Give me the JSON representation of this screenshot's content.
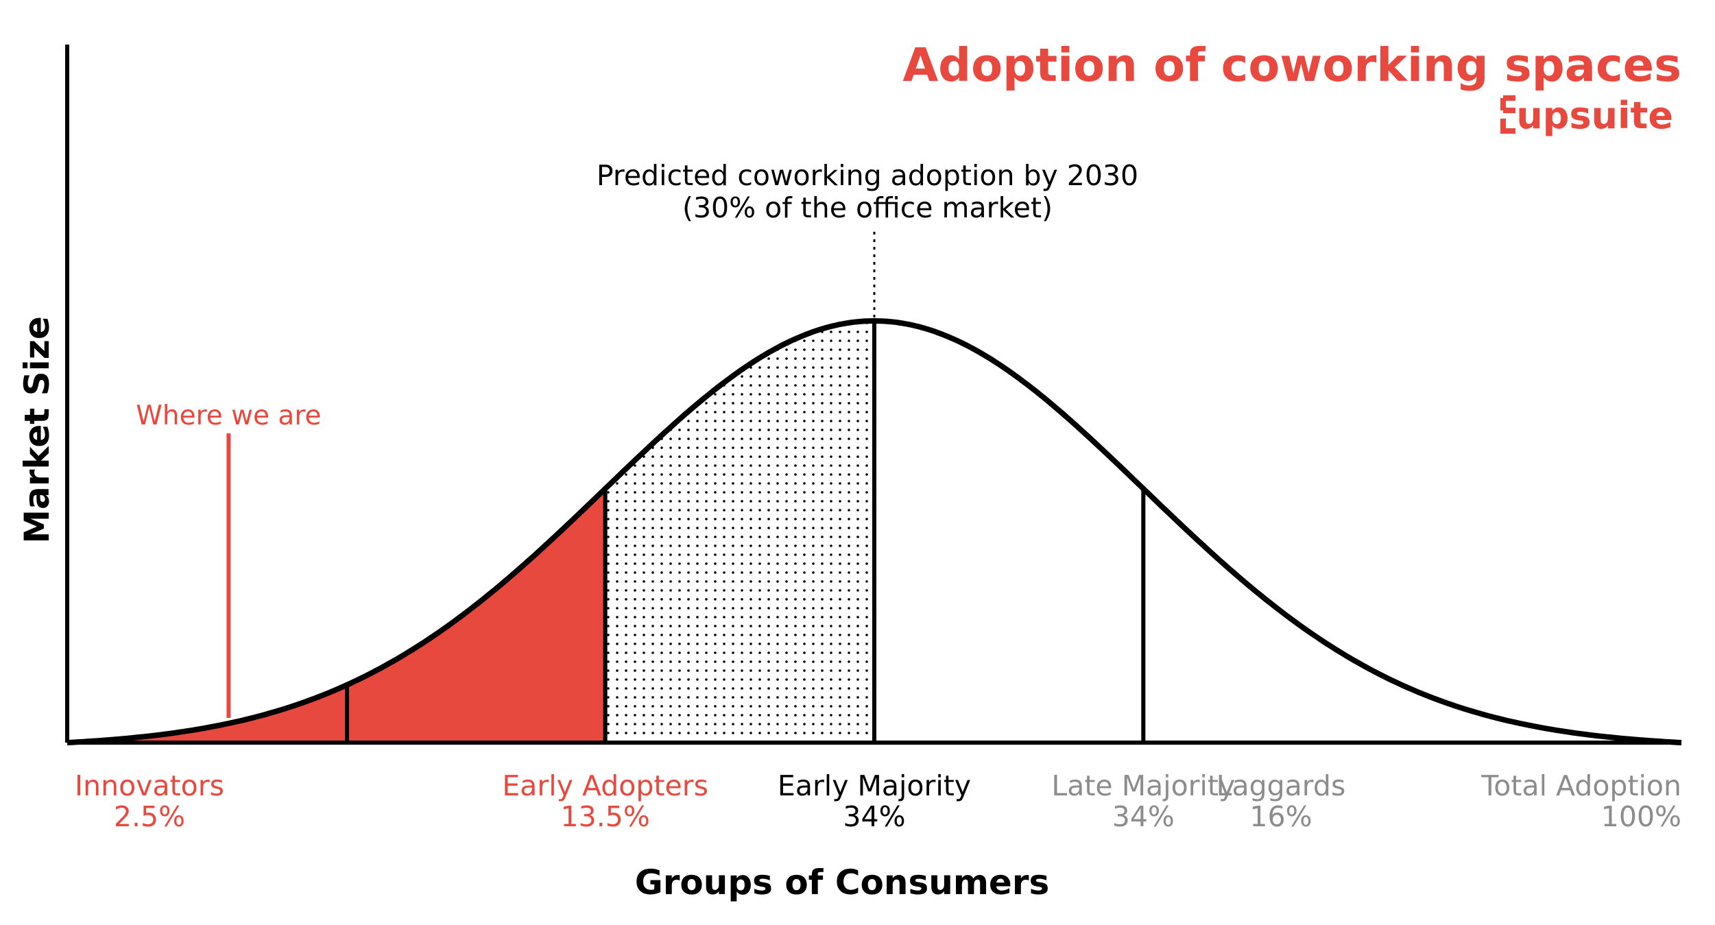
{
  "chart_data": {
    "type": "area",
    "title": "Adoption of coworking spaces",
    "brand": "upsuite",
    "xlabel": "Groups of Consumers",
    "ylabel": "Market Size",
    "distribution": "normal",
    "xlim": [
      -3,
      3
    ],
    "boundaries": [
      -1.96,
      -1.0,
      0.0,
      1.0,
      3.0
    ],
    "segments": [
      {
        "name": "Innovators",
        "share": "2.5%",
        "value": 2.5
      },
      {
        "name": "Early Adopters",
        "share": "13.5%",
        "value": 13.5
      },
      {
        "name": "Early Majority",
        "share": "34%",
        "value": 34
      },
      {
        "name": "Late Majority",
        "share": "34%",
        "value": 34
      },
      {
        "name": "Laggards",
        "share": "16%",
        "value": 16
      },
      {
        "name": "Total Adoption",
        "share": "100%",
        "value": 100
      }
    ],
    "annotations": {
      "current": {
        "text": "Where we are",
        "x": -2.4
      },
      "predicted": {
        "line1": "Predicted coworking adoption by 2030",
        "line2": "(30% of the office market)",
        "x": 0.0
      }
    },
    "grid": false
  },
  "colors": {
    "accent": "#e8493f",
    "ink": "#000000",
    "muted": "#8c8c8c",
    "background": "#ffffff"
  }
}
